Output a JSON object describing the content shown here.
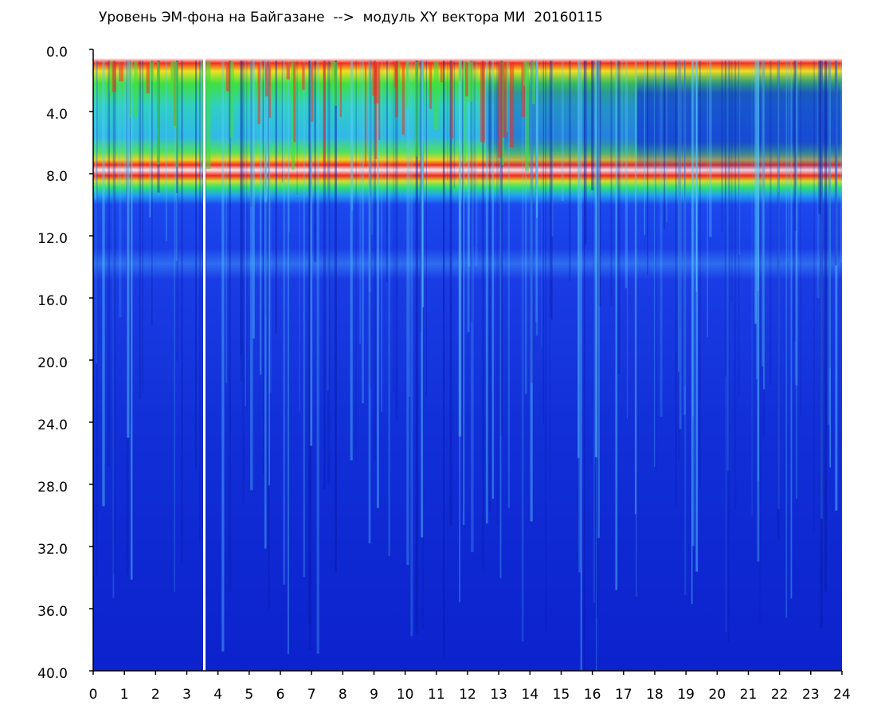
{
  "chart_data": {
    "type": "heatmap",
    "title": "Уровень ЭМ-фона на Байгазане  -->  модуль XY вектора МИ  20160115",
    "xlim": [
      0,
      24
    ],
    "xticks": [
      0,
      1,
      2,
      3,
      4,
      5,
      6,
      7,
      8,
      9,
      10,
      11,
      12,
      13,
      14,
      15,
      16,
      17,
      18,
      19,
      20,
      21,
      22,
      23,
      24
    ],
    "ylim": [
      0,
      40
    ],
    "yticks": [
      {
        "value": 0,
        "label": "0.0"
      },
      {
        "value": 4,
        "label": "4.0"
      },
      {
        "value": 8,
        "label": "8.0"
      },
      {
        "value": 12,
        "label": "12.0"
      },
      {
        "value": 16,
        "label": "16.0"
      },
      {
        "value": 20,
        "label": "20.0"
      },
      {
        "value": 24,
        "label": "24.0"
      },
      {
        "value": 28,
        "label": "28.0"
      },
      {
        "value": 32,
        "label": "32.0"
      },
      {
        "value": 36,
        "label": "36.0"
      },
      {
        "value": 40,
        "label": "40.0"
      }
    ]
  }
}
